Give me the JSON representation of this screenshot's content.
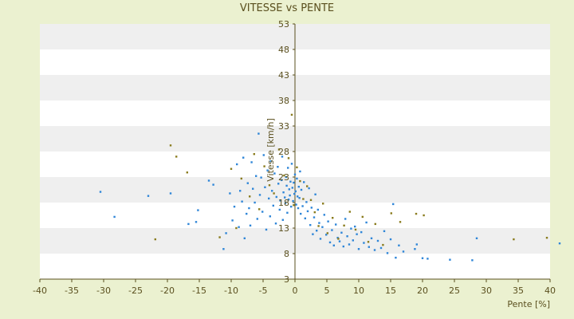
{
  "chart_data": {
    "type": "scatter",
    "title": "VITESSE vs PENTE",
    "xlabel": "Pente [%]",
    "ylabel": "Vitesse [km/h]",
    "xlim": [
      -40,
      40
    ],
    "ylim": [
      3,
      53
    ],
    "xticks": [
      -40,
      -35,
      -30,
      -25,
      -20,
      -15,
      -10,
      -5,
      0,
      5,
      10,
      15,
      20,
      25,
      30,
      35,
      40
    ],
    "yticks": [
      3,
      8,
      13,
      18,
      23,
      28,
      33,
      38,
      43,
      48,
      53
    ],
    "grid": "horizontal bands",
    "colors": {
      "background": "#ebf1d0",
      "plot_band_light": "#ffffff",
      "plot_band_dark": "#efefef",
      "axis": "#5a4f1e",
      "series_blue": "#2f86d8",
      "series_olive": "#8a7c1e"
    },
    "series": [
      {
        "color": "#2f86d8",
        "points": [
          [
            -30.5,
            20.1
          ],
          [
            -28.3,
            15.2
          ],
          [
            -23,
            19.3
          ],
          [
            -19.5,
            19.8
          ],
          [
            -16.7,
            13.8
          ],
          [
            -15.5,
            14.2
          ],
          [
            -15.2,
            16.5
          ],
          [
            -13.5,
            22.3
          ],
          [
            -12.8,
            21.5
          ],
          [
            -11.2,
            8.9
          ],
          [
            -10.8,
            12.0
          ],
          [
            -10.2,
            19.8
          ],
          [
            -9.8,
            14.5
          ],
          [
            -9.5,
            17.2
          ],
          [
            -9.1,
            25.5
          ],
          [
            -8.8,
            13.2
          ],
          [
            -8.6,
            20.3
          ],
          [
            -8.3,
            18.2
          ],
          [
            -8.1,
            26.8
          ],
          [
            -7.9,
            11.0
          ],
          [
            -7.6,
            15.8
          ],
          [
            -7.4,
            21.8
          ],
          [
            -7.2,
            16.9
          ],
          [
            -7.0,
            13.5
          ],
          [
            -6.8,
            25.9
          ],
          [
            -6.6,
            20.7
          ],
          [
            -6.3,
            18.0
          ],
          [
            -6.1,
            23.2
          ],
          [
            -5.9,
            14.8
          ],
          [
            -5.7,
            31.5
          ],
          [
            -5.5,
            19.5
          ],
          [
            -5.3,
            22.9
          ],
          [
            -5.1,
            16.2
          ],
          [
            -4.9,
            27.3
          ],
          [
            -4.7,
            21.0
          ],
          [
            -4.5,
            12.7
          ],
          [
            -4.3,
            24.3
          ],
          [
            -4.1,
            18.8
          ],
          [
            -3.9,
            15.3
          ],
          [
            -3.8,
            26.1
          ],
          [
            -3.6,
            20.3
          ],
          [
            -3.4,
            17.4
          ],
          [
            -3.2,
            23.7
          ],
          [
            -3.0,
            13.9
          ],
          [
            -2.9,
            19.1
          ],
          [
            -2.7,
            25.0
          ],
          [
            -2.6,
            21.7
          ],
          [
            -2.4,
            16.6
          ],
          [
            -2.3,
            18.4
          ],
          [
            -2.1,
            22.4
          ],
          [
            -2.0,
            27.0
          ],
          [
            -1.9,
            14.6
          ],
          [
            -1.8,
            20.0
          ],
          [
            -1.6,
            19.0
          ],
          [
            -1.5,
            17.9
          ],
          [
            -1.4,
            23.0
          ],
          [
            -1.3,
            21.3
          ],
          [
            -1.2,
            16.0
          ],
          [
            -1.1,
            24.8
          ],
          [
            -1.0,
            18.6
          ],
          [
            -0.9,
            20.6
          ],
          [
            -0.8,
            19.4
          ],
          [
            -0.7,
            22.1
          ],
          [
            -0.6,
            17.2
          ],
          [
            -0.5,
            25.6
          ],
          [
            -0.4,
            20.9
          ],
          [
            -0.3,
            18.3
          ],
          [
            -0.2,
            21.9
          ],
          [
            -0.1,
            19.7
          ],
          [
            0.0,
            23.5
          ],
          [
            0.1,
            20.2
          ],
          [
            0.2,
            17.6
          ],
          [
            0.3,
            22.7
          ],
          [
            0.4,
            19.2
          ],
          [
            0.5,
            16.9
          ],
          [
            0.6,
            21.1
          ],
          [
            0.7,
            18.9
          ],
          [
            0.8,
            24.1
          ],
          [
            0.9,
            15.8
          ],
          [
            1.0,
            20.5
          ],
          [
            1.2,
            17.3
          ],
          [
            1.4,
            22.0
          ],
          [
            1.6,
            14.9
          ],
          [
            1.8,
            18.1
          ],
          [
            2.0,
            16.3
          ],
          [
            2.2,
            20.8
          ],
          [
            2.4,
            13.6
          ],
          [
            2.6,
            17.0
          ],
          [
            2.8,
            11.8
          ],
          [
            3.0,
            15.1
          ],
          [
            3.2,
            19.6
          ],
          [
            3.4,
            12.5
          ],
          [
            3.6,
            16.6
          ],
          [
            3.8,
            14.0
          ],
          [
            4.0,
            10.9
          ],
          [
            4.3,
            13.2
          ],
          [
            4.6,
            15.6
          ],
          [
            4.9,
            11.7
          ],
          [
            5.2,
            14.3
          ],
          [
            5.5,
            10.2
          ],
          [
            5.8,
            12.6
          ],
          [
            6.1,
            9.6
          ],
          [
            6.4,
            13.7
          ],
          [
            6.7,
            11.1
          ],
          [
            7.0,
            10.4
          ],
          [
            7.3,
            12.1
          ],
          [
            7.6,
            9.4
          ],
          [
            7.9,
            14.8
          ],
          [
            8.2,
            11.4
          ],
          [
            8.5,
            9.8
          ],
          [
            8.8,
            12.9
          ],
          [
            9.1,
            10.6
          ],
          [
            9.4,
            13.3
          ],
          [
            9.7,
            11.8
          ],
          [
            10.0,
            8.9
          ],
          [
            10.4,
            12.2
          ],
          [
            10.8,
            10.1
          ],
          [
            11.2,
            14.1
          ],
          [
            11.6,
            9.3
          ],
          [
            12.0,
            11.0
          ],
          [
            12.5,
            8.7
          ],
          [
            13.0,
            10.5
          ],
          [
            13.5,
            9.1
          ],
          [
            14.0,
            12.4
          ],
          [
            14.5,
            8.1
          ],
          [
            15.0,
            10.8
          ],
          [
            15.4,
            17.7
          ],
          [
            15.8,
            7.2
          ],
          [
            16.3,
            9.6
          ],
          [
            17.0,
            8.4
          ],
          [
            18.8,
            8.9
          ],
          [
            19.1,
            9.8
          ],
          [
            20.0,
            7.1
          ],
          [
            20.8,
            7.0
          ],
          [
            24.3,
            6.8
          ],
          [
            27.8,
            6.7
          ],
          [
            28.5,
            11.0
          ],
          [
            41.5,
            10.0
          ]
        ]
      },
      {
        "color": "#8a7c1e",
        "points": [
          [
            -21.9,
            10.8
          ],
          [
            -19.5,
            29.2
          ],
          [
            -18.6,
            27.0
          ],
          [
            -16.9,
            23.9
          ],
          [
            -11.8,
            11.2
          ],
          [
            -10.0,
            24.6
          ],
          [
            -9.2,
            13.0
          ],
          [
            -8.4,
            22.7
          ],
          [
            -7.1,
            19.2
          ],
          [
            -6.4,
            27.5
          ],
          [
            -5.6,
            16.7
          ],
          [
            -4.8,
            25.1
          ],
          [
            -4.0,
            21.4
          ],
          [
            -3.3,
            19.8
          ],
          [
            -2.5,
            28.4
          ],
          [
            -1.7,
            23.3
          ],
          [
            -1.0,
            26.7
          ],
          [
            -0.5,
            35.2
          ],
          [
            -0.2,
            17.5
          ],
          [
            0.3,
            24.9
          ],
          [
            0.8,
            22.2
          ],
          [
            1.3,
            18.7
          ],
          [
            1.9,
            21.2
          ],
          [
            2.5,
            18.5
          ],
          [
            3.1,
            16.1
          ],
          [
            3.7,
            13.4
          ],
          [
            4.4,
            17.8
          ],
          [
            5.1,
            12.0
          ],
          [
            5.9,
            15.0
          ],
          [
            6.8,
            10.9
          ],
          [
            7.7,
            13.5
          ],
          [
            8.6,
            16.2
          ],
          [
            9.5,
            12.7
          ],
          [
            10.6,
            15.2
          ],
          [
            11.5,
            10.3
          ],
          [
            12.6,
            13.8
          ],
          [
            13.8,
            9.7
          ],
          [
            15.1,
            15.9
          ],
          [
            16.5,
            14.2
          ],
          [
            19.0,
            15.8
          ],
          [
            20.2,
            15.5
          ],
          [
            34.3,
            10.8
          ],
          [
            39.5,
            11.1
          ]
        ]
      }
    ]
  }
}
